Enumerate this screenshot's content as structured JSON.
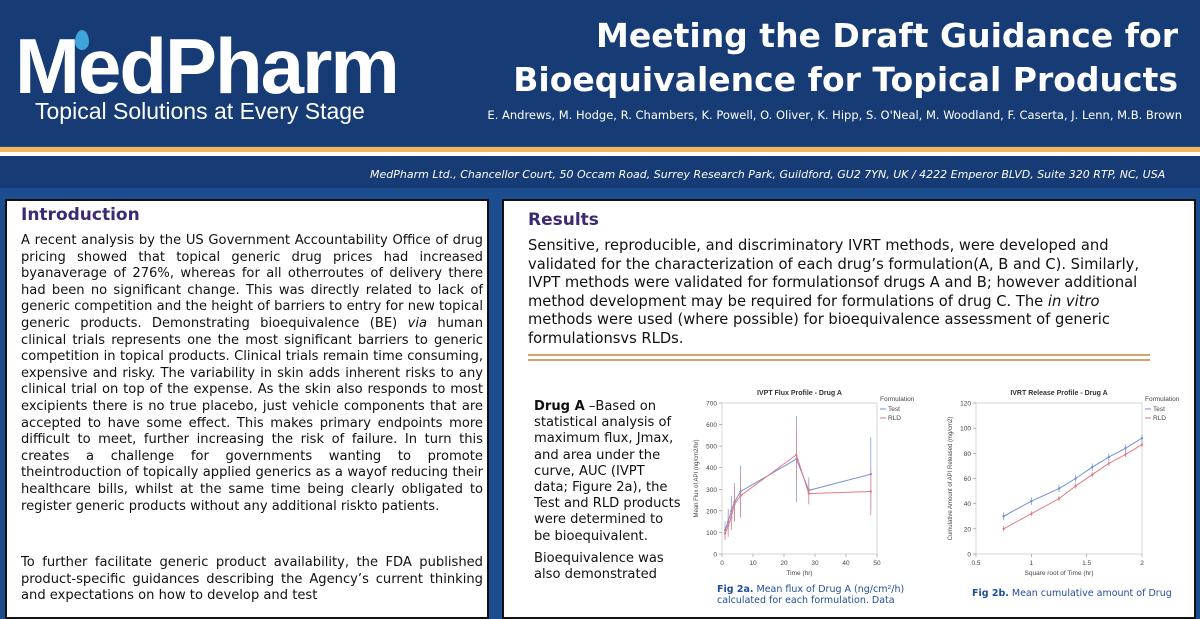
{
  "header": {
    "logo_text": "MedPharm",
    "logo_tagline": "Topical Solutions at Every Stage",
    "title_line1": "Meeting the Draft Guidance for",
    "title_line2": "Bioequivalence for Topical Products",
    "authors": "E. Andrews, M. Hodge, R. Chambers, K. Powell, O. Oliver, K. Hipp, S. O'Neal, M. Woodland, F. Caserta, J. Lenn, M.B. Brown",
    "address": "MedPharm Ltd., Chancellor Court, 50 Occam Road, Surrey Research Park, Guildford, GU2 7YN, UK / 4222 Emperor BLVD, Suite 320 RTP, NC, USA"
  },
  "introduction": {
    "title": "Introduction",
    "p1_a": "A recent analysis by the US Government Accountability Office of drug pricing showed that topical generic drug prices had increased byanaverage of 276%, whereas for all otherroutes of delivery there had been no significant change. This was directly related to lack of generic competition and the height of barriers to entry for new topical generic products. Demonstrating bioequivalence (BE) ",
    "p1_via": "via",
    "p1_b": " human clinical trials represents one the most significant barriers to generic competition in topical products. Clinical trials remain time consuming, expensive and risky. The variability in skin adds inherent risks to any clinical trial on top of the expense. As the skin also responds to most excipients there is no true placebo, just vehicle components that are accepted to have some effect. This makes primary endpoints more difficult to meet, further increasing the risk of failure. In turn this creates a challenge for governments wanting to promote theintroduction of topically applied generics as a wayof reducing their healthcare bills, whilst at the same time being clearly obligated to register generic products without any additional riskto patients.",
    "p2": "To further facilitate generic product  availability, the FDA published product-specific guidances describing the Agency’s current thinking and expectations on how to develop and test"
  },
  "results": {
    "title": "Results",
    "p1_a": "Sensitive, reproducible, and discriminatory IVRT methods, were developed and validated for the characterization of each drug’s formulation(A, B and C). Similarly, IVPT methods were validated for formulationsof drugs A and B; however additional method development may be required for formulations of drug C. The ",
    "p1_italic": "in vitro",
    "p1_b": " methods were used (where possible) for bioequivalence assessment of generic formulationsvs RLDs.",
    "drug_a_label": "Drug A",
    "drug_a_text": " –Based on statistical analysis of maximum flux, Jmax, and area under the curve, AUC (IVPT data; Figure 2a), the Test and RLD products were determined to be bioequivalent.",
    "drug_a_text2": "Bioequivalence was also demonstrated"
  },
  "fig2a": {
    "caption_label": "Fig 2a.",
    "caption_text": " Mean flux of Drug A (ng/cm²/h) calculated for each formulation. Data"
  },
  "fig2b": {
    "caption_label": "Fig 2b.",
    "caption_text": " Mean cumulative amount of Drug"
  },
  "chart_data": [
    {
      "type": "line",
      "title": "IVPT Flux Profile - Drug A",
      "xlabel": "Time (hr)",
      "ylabel": "Mean Flux of API (ng/cm2/hr)",
      "xlim": [
        0,
        50
      ],
      "ylim": [
        0,
        700
      ],
      "xticks": [
        0,
        10,
        20,
        30,
        40,
        50
      ],
      "yticks": [
        0,
        100,
        200,
        300,
        400,
        500,
        600,
        700
      ],
      "legend_title": "Formulation",
      "legend_position": "top-right",
      "series": [
        {
          "name": "Test",
          "color": "#6f8fd8",
          "x": [
            1,
            2,
            3,
            4,
            6,
            24,
            28,
            48
          ],
          "y": [
            110,
            150,
            200,
            240,
            290,
            440,
            295,
            370
          ],
          "err": [
            40,
            60,
            70,
            90,
            120,
            200,
            60,
            170
          ]
        },
        {
          "name": "RLD",
          "color": "#e07a85",
          "x": [
            1,
            2,
            3,
            4,
            6,
            24,
            28,
            48
          ],
          "y": [
            95,
            130,
            170,
            230,
            270,
            460,
            280,
            290
          ],
          "err": [
            30,
            50,
            60,
            80,
            100,
            120,
            50,
            110
          ]
        }
      ]
    },
    {
      "type": "line",
      "title": "IVRT Release Profile - Drug A",
      "xlabel": "Square root of Time (hr)",
      "ylabel": "Cumulative Amount of API Released (mg/cm2)",
      "xlim": [
        0.5,
        2.0
      ],
      "ylim": [
        0,
        120
      ],
      "xticks": [
        0.5,
        1.0,
        1.5,
        2.0
      ],
      "yticks": [
        0,
        20,
        40,
        60,
        80,
        100,
        120
      ],
      "legend_title": "Formulation",
      "legend_position": "top-right",
      "series": [
        {
          "name": "Test",
          "color": "#6f8fd8",
          "x": [
            0.75,
            1.0,
            1.25,
            1.4,
            1.55,
            1.7,
            1.85,
            2.0
          ],
          "y": [
            30,
            42,
            52,
            60,
            69,
            77,
            84,
            92
          ],
          "err": [
            3,
            3,
            3,
            3,
            3,
            3,
            3,
            3
          ]
        },
        {
          "name": "RLD",
          "color": "#e07a85",
          "x": [
            0.75,
            1.0,
            1.25,
            1.4,
            1.55,
            1.7,
            1.85,
            2.0
          ],
          "y": [
            20,
            32,
            44,
            54,
            63,
            72,
            79,
            87
          ],
          "err": [
            2,
            2,
            2,
            2,
            2,
            2,
            2,
            2
          ]
        }
      ]
    }
  ]
}
